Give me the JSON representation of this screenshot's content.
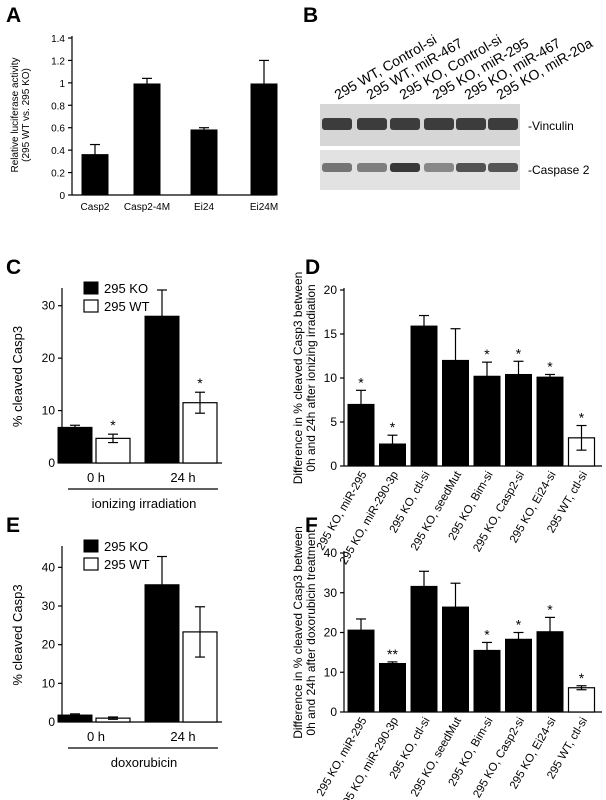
{
  "panels": {
    "A": "A",
    "B": "B",
    "C": "C",
    "D": "D",
    "E": "E",
    "F": "F"
  },
  "chart_data": [
    {
      "panel": "A",
      "type": "bar",
      "ylabel": "Relative luciferase activity\n(295 WT vs. 295 KO)",
      "categories": [
        "Casp2",
        "Casp2-4M",
        "Ei24",
        "Ei24M"
      ],
      "values": [
        0.36,
        0.99,
        0.58,
        0.99
      ],
      "errors": [
        0.09,
        0.05,
        0.02,
        0.21
      ],
      "ylim": [
        0,
        1.4
      ],
      "yticks": [
        0,
        0.2,
        0.4,
        0.6,
        0.8,
        1,
        1.2,
        1.4
      ]
    },
    {
      "panel": "B",
      "type": "table",
      "lanes": [
        "295 WT, Control-si",
        "295 WT, miR-467",
        "295 KO, Control-si",
        "295 KO, miR-295",
        "295 KO, miR-467",
        "295 KO, miR-20a"
      ],
      "bands": [
        "-Vinculin",
        "-Caspase 2"
      ]
    },
    {
      "panel": "C",
      "type": "bar",
      "ylabel": "% cleaved Casp3",
      "groups": [
        "0 h",
        "24 h"
      ],
      "xlabel": "ionizing irradiation",
      "series": [
        {
          "name": "295 KO",
          "values": [
            6.8,
            28
          ],
          "errors": [
            0.4,
            5
          ]
        },
        {
          "name": "295 WT",
          "values": [
            4.7,
            11.5
          ],
          "errors": [
            0.8,
            2
          ]
        }
      ],
      "significance": [
        "*",
        "*"
      ],
      "ylim": [
        0,
        33
      ],
      "yticks": [
        0,
        10,
        20,
        30
      ]
    },
    {
      "panel": "D",
      "type": "bar",
      "ylabel": "Difference in % cleaved Casp3 between\n0h and 24h after ionizing irradiation",
      "categories": [
        "295 KO, miR-295",
        "295 KO, miR-290-3p",
        "295 KO, ctl-si",
        "295 KO, seedMut",
        "295 KO, Bim-si",
        "295 KO, Casp2-si",
        "295 KO, Ei24-si",
        "295 WT, ctl-si"
      ],
      "values": [
        7,
        2.5,
        15.9,
        12,
        10.2,
        10.4,
        10.1,
        3.2
      ],
      "errors": [
        1.6,
        1.0,
        1.2,
        3.6,
        1.6,
        1.5,
        0.3,
        1.4
      ],
      "significance": [
        "*",
        "*",
        "",
        "",
        "*",
        "*",
        "*",
        "*"
      ],
      "open": [
        false,
        false,
        false,
        false,
        false,
        false,
        false,
        true
      ],
      "ylim": [
        0,
        20
      ],
      "yticks": [
        0,
        5,
        10,
        15,
        20
      ]
    },
    {
      "panel": "E",
      "type": "bar",
      "ylabel": "% cleaved Casp3",
      "groups": [
        "0 h",
        "24 h"
      ],
      "xlabel": "doxorubicin",
      "series": [
        {
          "name": "295 KO",
          "values": [
            1.8,
            35.5
          ],
          "errors": [
            0.3,
            7.3
          ]
        },
        {
          "name": "295 WT",
          "values": [
            1.0,
            23.3
          ],
          "errors": [
            0.3,
            6.5
          ]
        }
      ],
      "significance": [
        "",
        ""
      ],
      "ylim": [
        0,
        45
      ],
      "yticks": [
        0,
        10,
        20,
        30,
        40
      ]
    },
    {
      "panel": "F",
      "type": "bar",
      "ylabel": "Difference in % cleaved Casp3 between\n0h and 24h after doxorubicin treatment",
      "categories": [
        "295 KO, miR-295",
        "295 KO, miR-290-3p",
        "295 KO, ctl-si",
        "295 KO, seedMut",
        "295 KO, Bim-si",
        "295 KO, Casp2-si",
        "295 KO, Ei24-si",
        "295 WT, ctl-si"
      ],
      "values": [
        20.6,
        12.2,
        31.6,
        26.4,
        15.5,
        18.3,
        20.2,
        6.1
      ],
      "errors": [
        2.8,
        0.4,
        3.8,
        6.0,
        2.0,
        1.7,
        3.6,
        0.5
      ],
      "significance": [
        "",
        "**",
        "",
        "",
        "*",
        "*",
        "*",
        "*"
      ],
      "open": [
        false,
        false,
        false,
        false,
        false,
        false,
        false,
        true
      ],
      "ylim": [
        0,
        40
      ],
      "yticks": [
        0,
        10,
        20,
        30,
        40
      ]
    }
  ]
}
